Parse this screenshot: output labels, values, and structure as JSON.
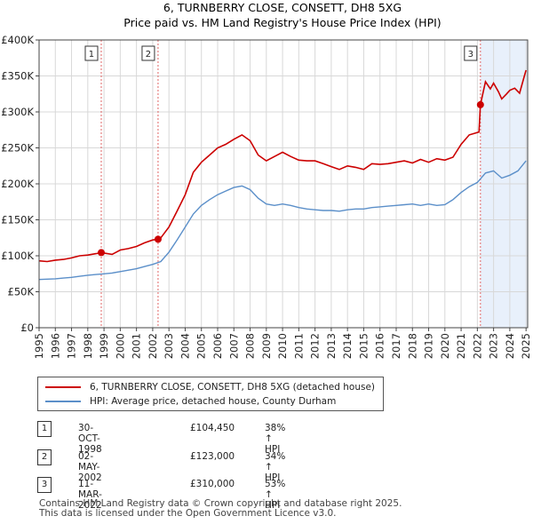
{
  "chart_data": {
    "type": "line",
    "title": "6, TURNBERRY CLOSE, CONSETT, DH8 5XG",
    "subtitle": "Price paid vs. HM Land Registry's House Price Index (HPI)",
    "xlim": [
      1995,
      2025.1
    ],
    "ylim": [
      0,
      400000
    ],
    "y_ticks": [
      0,
      50000,
      100000,
      150000,
      200000,
      250000,
      300000,
      350000,
      400000
    ],
    "y_tick_labels": [
      "£0",
      "£50K",
      "£100K",
      "£150K",
      "£200K",
      "£250K",
      "£300K",
      "£350K",
      "£400K"
    ],
    "x_ticks": [
      1995,
      1996,
      1997,
      1998,
      1999,
      2000,
      2001,
      2002,
      2003,
      2004,
      2005,
      2006,
      2007,
      2008,
      2009,
      2010,
      2011,
      2012,
      2013,
      2014,
      2015,
      2016,
      2017,
      2018,
      2019,
      2020,
      2021,
      2022,
      2023,
      2024,
      2025
    ],
    "grid": true,
    "series": [
      {
        "name": "6, TURNBERRY CLOSE, CONSETT, DH8 5XG (detached house)",
        "color": "#cc0000",
        "x": [
          1995,
          1995.5,
          1996,
          1996.5,
          1997,
          1997.5,
          1998,
          1998.5,
          1998.83,
          1999.5,
          2000,
          2000.5,
          2001,
          2001.5,
          2002,
          2002.33,
          2002.5,
          2003,
          2003.5,
          2004,
          2004.5,
          2005,
          2005.5,
          2006,
          2006.5,
          2007,
          2007.5,
          2008,
          2008.5,
          2009,
          2009.5,
          2010,
          2010.5,
          2011,
          2011.5,
          2012,
          2012.5,
          2013,
          2013.5,
          2014,
          2014.5,
          2015,
          2015.5,
          2016,
          2016.5,
          2017,
          2017.5,
          2018,
          2018.5,
          2019,
          2019.5,
          2020,
          2020.5,
          2021,
          2021.5,
          2022.1,
          2022.19,
          2022.5,
          2022.8,
          2023,
          2023.3,
          2023.5,
          2023.8,
          2024,
          2024.3,
          2024.6,
          2024.9,
          2025
        ],
        "values": [
          93000,
          92000,
          94000,
          95000,
          97000,
          100000,
          101000,
          103000,
          104450,
          102000,
          108000,
          110000,
          113000,
          118000,
          122000,
          123000,
          125000,
          140000,
          162000,
          185000,
          216000,
          230000,
          240000,
          250000,
          255000,
          262000,
          268000,
          260000,
          240000,
          232000,
          238000,
          244000,
          238000,
          233000,
          232000,
          232000,
          228000,
          224000,
          220000,
          225000,
          223000,
          220000,
          228000,
          227000,
          228000,
          230000,
          232000,
          229000,
          234000,
          230000,
          235000,
          233000,
          237000,
          255000,
          268000,
          272000,
          310000,
          342000,
          332000,
          340000,
          328000,
          318000,
          325000,
          330000,
          333000,
          326000,
          350000,
          358000
        ]
      },
      {
        "name": "HPI: Average price, detached house, County Durham",
        "color": "#5b8fc9",
        "x": [
          1995,
          1995.5,
          1996,
          1996.5,
          1997,
          1997.5,
          1998,
          1998.5,
          1999,
          1999.5,
          2000,
          2000.5,
          2001,
          2001.5,
          2002,
          2002.5,
          2003,
          2003.5,
          2004,
          2004.5,
          2005,
          2005.5,
          2006,
          2006.5,
          2007,
          2007.5,
          2008,
          2008.5,
          2009,
          2009.5,
          2010,
          2010.5,
          2011,
          2011.5,
          2012,
          2012.5,
          2013,
          2013.5,
          2014,
          2014.5,
          2015,
          2015.5,
          2016,
          2016.5,
          2017,
          2017.5,
          2018,
          2018.5,
          2019,
          2019.5,
          2020,
          2020.5,
          2021,
          2021.5,
          2022,
          2022.5,
          2023,
          2023.5,
          2024,
          2024.5,
          2025
        ],
        "values": [
          67000,
          67500,
          68000,
          69000,
          70000,
          71500,
          73000,
          74000,
          75000,
          76000,
          78000,
          80000,
          82000,
          85000,
          88000,
          92000,
          105000,
          122000,
          140000,
          158000,
          170000,
          178000,
          185000,
          190000,
          195000,
          197000,
          192000,
          180000,
          172000,
          170000,
          172000,
          170000,
          167000,
          165000,
          164000,
          163000,
          163000,
          162000,
          164000,
          165000,
          165000,
          167000,
          168000,
          169000,
          170000,
          171000,
          172000,
          170000,
          172000,
          170000,
          171000,
          178000,
          188000,
          196000,
          202000,
          215000,
          218000,
          208000,
          212000,
          218000,
          232000
        ]
      }
    ],
    "transactions": [
      {
        "id": "1",
        "date": "30-OCT-1998",
        "x": 1998.83,
        "price": 104450,
        "price_label": "£104,450",
        "hpi_label": "38% ↑ HPI"
      },
      {
        "id": "2",
        "date": "02-MAY-2002",
        "x": 2002.33,
        "price": 123000,
        "price_label": "£123,000",
        "hpi_label": "34% ↑ HPI"
      },
      {
        "id": "3",
        "date": "11-MAR-2022",
        "x": 2022.19,
        "price": 310000,
        "price_label": "£310,000",
        "hpi_label": "53% ↑ HPI"
      }
    ],
    "shade_color": "#e8f0fb"
  },
  "footer": {
    "line1": "Contains HM Land Registry data © Crown copyright and database right 2025.",
    "line2": "This data is licensed under the Open Government Licence v3.0."
  }
}
